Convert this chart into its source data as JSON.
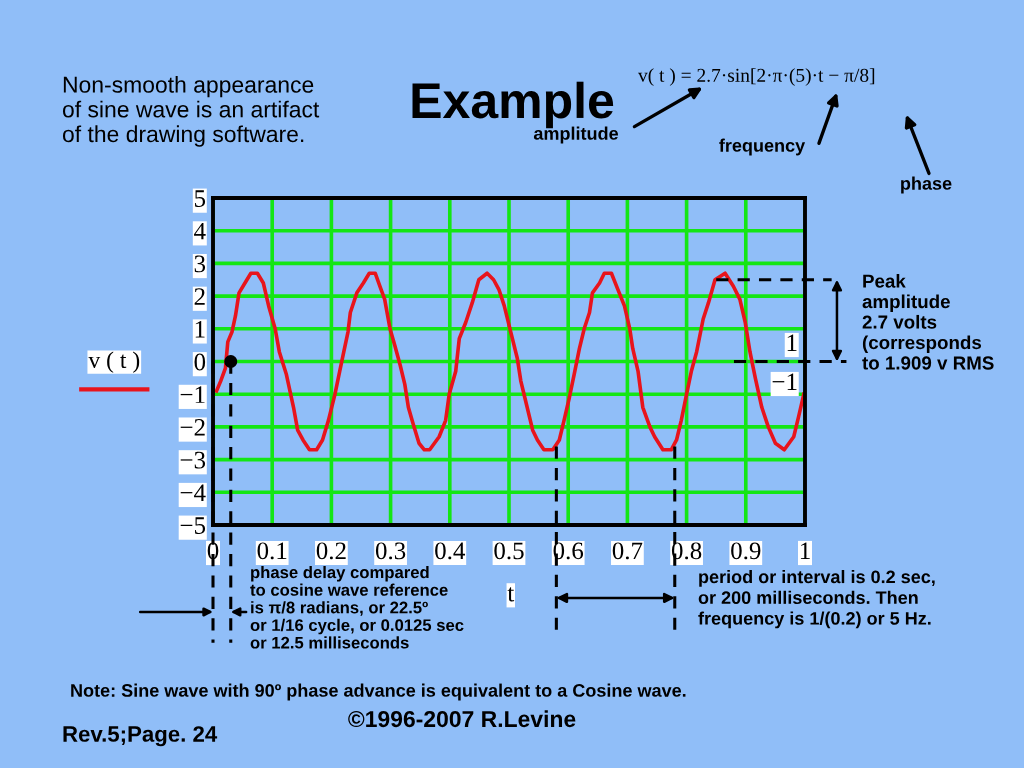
{
  "chart_data": {
    "type": "line",
    "title": "Example",
    "xlabel": "t",
    "x": [
      0.006,
      0.013,
      0.021,
      0.025,
      0.032,
      0.038,
      0.044,
      0.054,
      0.064,
      0.075,
      0.085,
      0.094,
      0.105,
      0.112,
      0.124,
      0.136,
      0.143,
      0.152,
      0.163,
      0.175,
      0.185,
      0.195,
      0.206,
      0.214,
      0.221,
      0.228,
      0.232,
      0.243,
      0.254,
      0.264,
      0.274,
      0.282,
      0.29,
      0.299,
      0.307,
      0.316,
      0.324,
      0.33,
      0.338,
      0.348,
      0.357,
      0.366,
      0.382,
      0.393,
      0.399,
      0.41,
      0.416,
      0.427,
      0.438,
      0.449,
      0.463,
      0.474,
      0.483,
      0.492,
      0.503,
      0.514,
      0.52,
      0.528,
      0.54,
      0.548,
      0.559,
      0.574,
      0.585,
      0.593,
      0.602,
      0.61,
      0.619,
      0.627,
      0.636,
      0.641,
      0.653,
      0.661,
      0.673,
      0.684,
      0.695,
      0.704,
      0.709,
      0.718,
      0.726,
      0.738,
      0.746,
      0.76,
      0.774,
      0.783,
      0.791,
      0.8,
      0.808,
      0.817,
      0.828,
      0.837,
      0.848,
      0.865,
      0.879,
      0.89,
      0.899,
      0.907,
      0.916,
      0.927,
      0.938,
      0.95,
      0.965,
      0.981,
      0.989,
      0.998
    ],
    "series": [
      {
        "name": "v ( t )",
        "color": "#e8141c",
        "values": [
          -0.9,
          -0.6,
          -0.2,
          0.6,
          0.9,
          1.4,
          2.1,
          2.4,
          2.7,
          2.7,
          2.4,
          1.7,
          1.0,
          0.3,
          -0.4,
          -1.4,
          -2.1,
          -2.4,
          -2.7,
          -2.7,
          -2.4,
          -1.8,
          -1.0,
          -0.3,
          0.3,
          0.9,
          1.5,
          2.1,
          2.4,
          2.7,
          2.7,
          2.3,
          1.9,
          1.0,
          0.5,
          -0.1,
          -0.7,
          -1.4,
          -1.9,
          -2.5,
          -2.7,
          -2.7,
          -2.3,
          -1.8,
          -1.0,
          -0.3,
          0.7,
          1.2,
          1.8,
          2.5,
          2.7,
          2.5,
          2.2,
          1.7,
          0.9,
          0.1,
          -0.6,
          -1.2,
          -2.1,
          -2.4,
          -2.7,
          -2.7,
          -2.4,
          -1.8,
          -1.1,
          -0.4,
          0.4,
          1.0,
          1.5,
          2.1,
          2.4,
          2.7,
          2.7,
          2.2,
          1.7,
          1.0,
          0.4,
          -0.3,
          -1.4,
          -2.0,
          -2.3,
          -2.7,
          -2.7,
          -2.4,
          -1.8,
          -1.0,
          -0.3,
          0.3,
          1.3,
          1.8,
          2.5,
          2.7,
          2.3,
          1.9,
          1.2,
          0.3,
          -0.5,
          -1.4,
          -2.0,
          -2.5,
          -2.7,
          -2.3,
          -1.7,
          -1.0
        ]
      },
      {
        "type": "scatter",
        "color": "#000000",
        "x": [
          0.03
        ],
        "values": [
          0
        ]
      }
    ],
    "xlim": [
      0,
      1
    ],
    "ylim": [
      -5,
      5
    ],
    "xticks": [
      0,
      0.1,
      0.2,
      0.3,
      0.4,
      0.5,
      0.6,
      0.7,
      0.8,
      0.9,
      1
    ],
    "yticks": [
      {
        "value": -5,
        "label": "−5"
      },
      {
        "value": -4,
        "label": "−4"
      },
      {
        "value": -3,
        "label": "−3"
      },
      {
        "value": -2,
        "label": "−2"
      },
      {
        "value": -1,
        "label": "−1"
      },
      0,
      1,
      2,
      3,
      4,
      5
    ],
    "grid": true,
    "legend": "left",
    "ref_lines": [
      {
        "axis": "x",
        "value": 0,
        "color": "#000000",
        "line_style": "dashed"
      },
      {
        "axis": "x",
        "value": 0.03,
        "color": "#000000",
        "line_style": "dashed"
      },
      {
        "axis": "x",
        "value": 0.58,
        "color": "#000000",
        "line_style": "dashed"
      },
      {
        "axis": "x",
        "value": 0.78,
        "color": "#000000",
        "line_style": "dashed"
      },
      {
        "axis": "y",
        "value": 2.5,
        "color": "#000000",
        "line_style": "dashed"
      },
      {
        "axis": "y",
        "value": 0,
        "color": "#000000",
        "line_style": "dashed"
      }
    ],
    "annotations": [
      "Non-smooth appearance\nof sine wave is an artifact\nof the drawing software.",
      "v( t ) = 2.7·sin[2·π·(5)·t − π/8]",
      "amplitude",
      "frequency",
      "phase",
      "Peak\namplitude\n2.7 volts\n(corresponds\nto 1.909 v RMS",
      "1",
      "−1",
      "phase delay compared\nto cosine wave reference\nis π/8 radians, or 22.5º\nor 1/16 cycle, or 0.0125 sec\nor 12.5 milliseconds",
      "period or interval is 0.2 sec,\nor 200 milliseconds. Then\nfrequency is 1/(0.2) or 5 Hz.",
      "Note: Sine wave with 90º phase advance is equivalent to a Cosine wave.",
      "©1996-2007 R.Levine",
      "Rev.5;Page. 24"
    ]
  }
}
